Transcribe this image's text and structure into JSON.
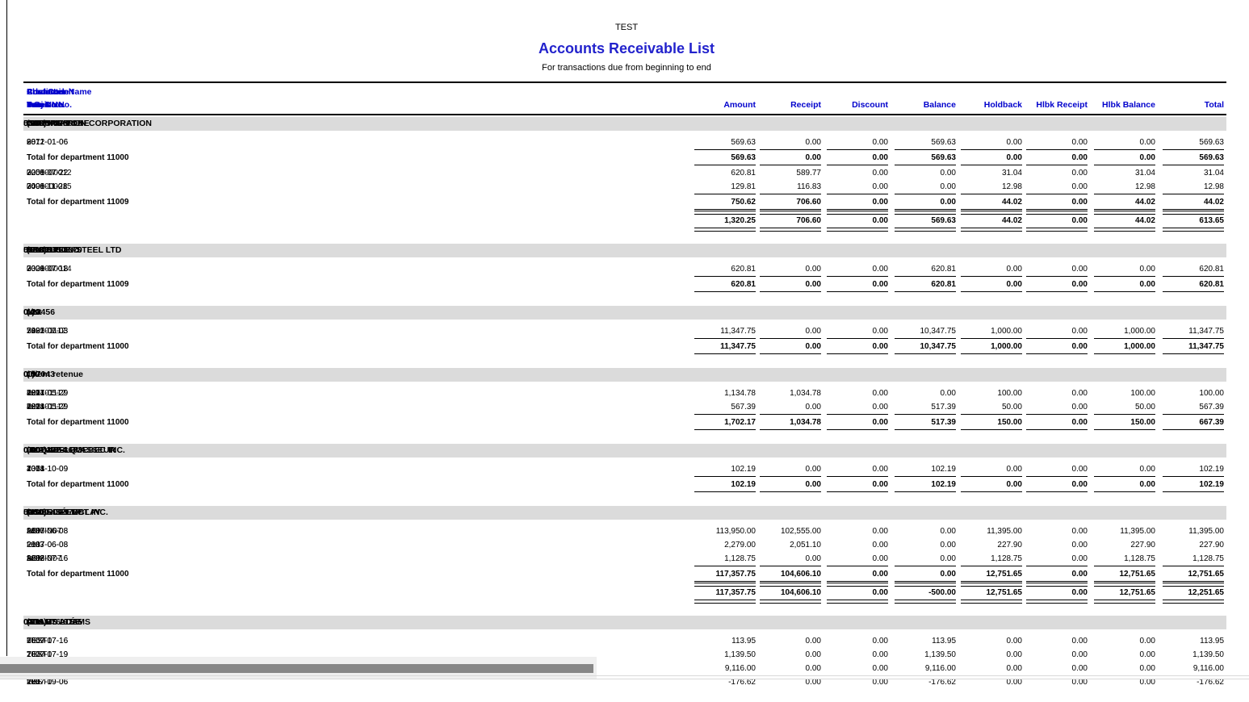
{
  "report": {
    "company_name": "TEST",
    "title": "Accounts Receivable List",
    "subtitle": "For transactions due from beginning to end",
    "columns": {
      "cust_code": "Cust Code",
      "customer_name": "Customer Name",
      "phone": "Phone",
      "contact": "Contact",
      "credit_limit": "Credit Limit",
      "advance": "Advance",
      "date": "Date",
      "due_date": "Due Date",
      "trans_no": "Trans No.",
      "invoice_no": "Invoice No.",
      "proj_no": "Proj No",
      "po": "P.O.",
      "amount": "Amount",
      "receipt": "Receipt",
      "discount": "Discount",
      "balance": "Balance",
      "holdback": "Holdback",
      "hlbk_receipt": "Hlbk Receipt",
      "hlbk_balance": "Hlbk Balance",
      "total": "Total"
    },
    "customers": [
      {
        "code": "*CAPIRON",
        "name": "CAPONE IRON CORPORATION",
        "phone": "(978)948-8000",
        "contact": "GARY CAPONE",
        "credit_limit": "500.00",
        "advance": "0.00",
        "groups": [
          {
            "rows": [
              {
                "date": "2012-01-06",
                "due": "2012-01-06",
                "trans": "3871",
                "inv": "60",
                "inv_num": true,
                "proj": "9",
                "po": "",
                "amts": [
                  "569.63",
                  "0.00",
                  "0.00",
                  "569.63",
                  "0.00",
                  "0.00",
                  "0.00",
                  "569.63"
                ]
              }
            ],
            "total_label": "Total for department 11000",
            "totals": [
              "569.63",
              "0.00",
              "0.00",
              "569.63",
              "0.00",
              "0.00",
              "0.00",
              "569.63"
            ]
          },
          {
            "rows": [
              {
                "date": "2008-07-22",
                "due": "2008-07-22",
                "trans": "3255",
                "inv": "0000000012",
                "inv_num": false,
                "proj": "7001",
                "po": "",
                "amts": [
                  "620.81",
                  "589.77",
                  "0.00",
                  "0.00",
                  "31.04",
                  "0.00",
                  "31.04",
                  "31.04"
                ]
              },
              {
                "date": "2008-11-28",
                "due": "2008-11-28",
                "trans": "3496",
                "inv": "0000000015",
                "inv_num": false,
                "proj": "7001",
                "po": "",
                "amts": [
                  "129.81",
                  "116.83",
                  "0.00",
                  "0.00",
                  "12.98",
                  "0.00",
                  "12.98",
                  "12.98"
                ]
              }
            ],
            "total_label": "Total for department 11009",
            "totals": [
              "750.62",
              "706.60",
              "0.00",
              "0.00",
              "44.02",
              "0.00",
              "44.02",
              "44.02"
            ]
          }
        ],
        "grand_totals": [
          "1,320.25",
          "706.60",
          "0.00",
          "569.63",
          "44.02",
          "0.00",
          "44.02",
          "613.65"
        ]
      },
      {
        "code": "*EXCSTEE",
        "name": "EXCELCON STEEL LTD",
        "phone": "(613)836-3070",
        "contact": "BINTORO LO",
        "credit_limit": "500.00",
        "advance": "0.00",
        "groups": [
          {
            "rows": [
              {
                "date": "2008-07-18",
                "due": "2008-07-18",
                "trans": "3329",
                "inv": "0000000014",
                "inv_num": false,
                "proj": "7001",
                "po": "",
                "amts": [
                  "620.81",
                  "0.00",
                  "0.00",
                  "620.81",
                  "0.00",
                  "0.00",
                  "0.00",
                  "620.81"
                ]
              }
            ],
            "total_label": "Total for department 11009",
            "totals": [
              "620.81",
              "0.00",
              "0.00",
              "620.81",
              "0.00",
              "0.00",
              "0.00",
              "620.81"
            ]
          }
        ],
        "grand_totals": null
      },
      {
        "code": "123456",
        "name": "test",
        "phone": "(  )    -",
        "contact": "",
        "credit_limit": "0.00",
        "advance": "0.00",
        "groups": [
          {
            "rows": [
              {
                "date": "2022-06-03",
                "due": "2022-07-03",
                "trans": "5485",
                "inv": "72",
                "inv_num": false,
                "proj": "7001",
                "po": "789101112",
                "amts": [
                  "11,347.75",
                  "0.00",
                  "0.00",
                  "10,347.75",
                  "1,000.00",
                  "0.00",
                  "1,000.00",
                  "11,347.75"
                ]
              }
            ],
            "total_label": "Total for department 11000",
            "totals": [
              "11,347.75",
              "0.00",
              "0.00",
              "10,347.75",
              "1,000.00",
              "0.00",
              "1,000.00",
              "11,347.75"
            ]
          }
        ],
        "grand_totals": null
      },
      {
        "code": "197043",
        "name": "Client retenue",
        "phone": "(  )    -",
        "contact": "",
        "credit_limit": "0.00",
        "advance": "0.00",
        "groups": [
          {
            "rows": [
              {
                "date": "2014-05-29",
                "due": "2014-05-29",
                "trans": "4277",
                "inv": "ret1",
                "inv_num": false,
                "proj": "7001",
                "po": "789101112",
                "amts": [
                  "1,134.78",
                  "1,034.78",
                  "0.00",
                  "0.00",
                  "100.00",
                  "0.00",
                  "100.00",
                  "100.00"
                ]
              },
              {
                "date": "2014-05-29",
                "due": "2014-05-29",
                "trans": "4278",
                "inv": "ret2",
                "inv_num": false,
                "proj": "7001",
                "po": "789101112",
                "amts": [
                  "567.39",
                  "0.00",
                  "0.00",
                  "517.39",
                  "50.00",
                  "0.00",
                  "50.00",
                  "567.39"
                ]
              }
            ],
            "total_label": "Total for department 11000",
            "totals": [
              "1,702.17",
              "1,034.78",
              "0.00",
              "517.39",
              "150.00",
              "0.00",
              "150.00",
              "667.39"
            ]
          }
        ],
        "grand_totals": null
      },
      {
        "code": "900QUEB",
        "name": "9007-4014 QUEBEC INC.",
        "phone": "(819)377-3663",
        "contact": "CLAUDE LEVASSEUR",
        "credit_limit": "0.00",
        "advance": "0.00",
        "groups": [
          {
            "rows": [
              {
                "date": "2014-10-09",
                "due": "2014-10-09",
                "trans": "4368",
                "inv": "107",
                "inv_num": true,
                "proj": "7001",
                "po": "",
                "amts": [
                  "102.19",
                  "0.00",
                  "0.00",
                  "102.19",
                  "0.00",
                  "0.00",
                  "0.00",
                  "102.19"
                ]
              }
            ],
            "total_label": "Total for department 11000",
            "totals": [
              "102.19",
              "0.00",
              "0.00",
              "102.19",
              "0.00",
              "0.00",
              "0.00",
              "102.19"
            ]
          }
        ],
        "grand_totals": null
      },
      {
        "code": "ACISELE",
        "name": "ACIER SÉLECT INC.",
        "phone": "(450)545-1767",
        "contact": "LUCIE TREMBLAY",
        "credit_limit": "0.00",
        "advance": "500.00",
        "groups": [
          {
            "rows": [
              {
                "date": "2007-06-08",
                "due": "2007-06-08",
                "trans": "2185",
                "inv": "test",
                "inv_num": false,
                "proj": "ADMIN07",
                "po": "",
                "amts": [
                  "113,950.00",
                  "102,555.00",
                  "0.00",
                  "0.00",
                  "11,395.00",
                  "0.00",
                  "11,395.00",
                  "11,395.00"
                ]
              },
              {
                "date": "2007-06-08",
                "due": "2007-06-08",
                "trans": "2187",
                "inv": "test3",
                "inv_num": false,
                "proj": "",
                "po": "",
                "amts": [
                  "2,279.00",
                  "2,051.10",
                  "0.00",
                  "0.00",
                  "227.90",
                  "0.00",
                  "227.90",
                  "227.90"
                ]
              },
              {
                "date": "2008-07-16",
                "due": "2008-07-16",
                "trans": "3232",
                "inv": "test2",
                "inv_num": false,
                "proj": "ADMIN07",
                "po": "",
                "amts": [
                  "1,128.75",
                  "0.00",
                  "0.00",
                  "0.00",
                  "1,128.75",
                  "0.00",
                  "1,128.75",
                  "1,128.75"
                ]
              }
            ],
            "total_label": "Total for department 11000",
            "totals": [
              "117,357.75",
              "104,606.10",
              "0.00",
              "0.00",
              "12,751.65",
              "0.00",
              "12,751.65",
              "12,751.65"
            ]
          }
        ],
        "grand_totals": [
          "117,357.75",
          "104,606.10",
          "0.00",
          "-500.00",
          "12,751.65",
          "0.00",
          "12,751.65",
          "12,251.65"
        ]
      },
      {
        "code": "ADAMS",
        "name": "ADAMS LTÉE",
        "phone": "(819)376-9755",
        "contact": "GILLES ADAMS",
        "credit_limit": "0.00",
        "advance": "0.00",
        "groups": [
          {
            "rows": [
              {
                "date": "2007-07-16",
                "due": "2007-07-16",
                "trans": "2569",
                "inv": "6",
                "inv_num": true,
                "proj": "TEST1",
                "po": "",
                "amts": [
                  "113.95",
                  "0.00",
                  "0.00",
                  "113.95",
                  "0.00",
                  "0.00",
                  "0.00",
                  "113.95"
                ]
              },
              {
                "date": "2007-07-19",
                "due": "2007-07-19",
                "trans": "2320",
                "inv": "1",
                "inv_num": true,
                "proj": "TEST1",
                "po": "",
                "amts": [
                  "1,139.50",
                  "0.00",
                  "0.00",
                  "1,139.50",
                  "0.00",
                  "0.00",
                  "0.00",
                  "1,139.50"
                ]
              },
              {
                "date": "2007-07-19",
                "due": "2007-07-19",
                "trans": "2549",
                "inv": "3",
                "inv_num": true,
                "proj": "TEST1",
                "po": "",
                "amts": [
                  "9,116.00",
                  "0.00",
                  "0.00",
                  "9,116.00",
                  "0.00",
                  "0.00",
                  "0.00",
                  "9,116.00"
                ]
              },
              {
                "date": "2007-09-06",
                "due": "2007-09-06",
                "trans": "2787",
                "inv": "test",
                "inv_num": false,
                "proj": "TEST1",
                "po": "",
                "amts": [
                  "-176.62",
                  "0.00",
                  "0.00",
                  "-176.62",
                  "0.00",
                  "0.00",
                  "0.00",
                  "-176.62"
                ]
              }
            ],
            "total_label": null,
            "totals": null
          }
        ],
        "grand_totals": null
      }
    ]
  },
  "colors": {
    "header_blue": "#0000CC",
    "title_blue": "#2222CC",
    "band_gray": "#DBDBDB",
    "rule_black": "#000000",
    "scrollbar_thumb": "#878787",
    "scrollbar_track": "#EFEFEF"
  }
}
